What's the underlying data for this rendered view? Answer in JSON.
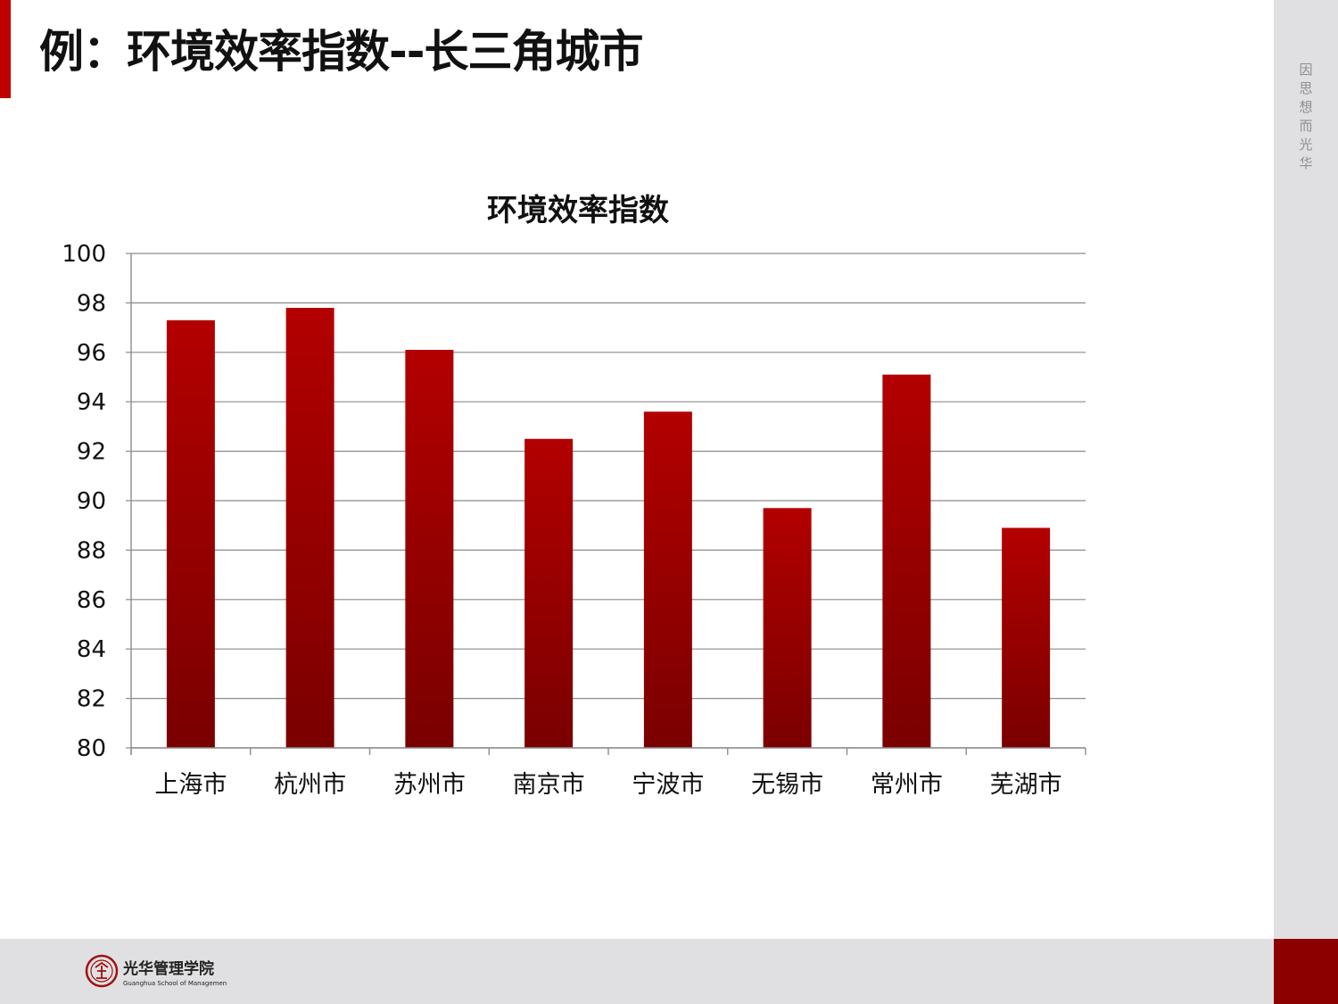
{
  "slide": {
    "title": "例：环境效率指数--长三角城市",
    "side_motto": "因思想 而光华",
    "logo": {
      "name_cn": "光华管理学院",
      "name_en": "Guanghua School of Management",
      "icon": "university-seal-icon"
    },
    "colors": {
      "accent": "#c00000",
      "bar_top": "#b30000",
      "bar_bottom": "#7a0000",
      "side_strip": "#e0e0e2",
      "footer_corner": "#8c0000"
    }
  },
  "chart_data": {
    "type": "bar",
    "title": "环境效率指数",
    "categories": [
      "上海市",
      "杭州市",
      "苏州市",
      "南京市",
      "宁波市",
      "无锡市",
      "常州市",
      "芜湖市"
    ],
    "values": [
      97.3,
      97.8,
      96.1,
      92.5,
      93.6,
      89.7,
      95.1,
      88.9
    ],
    "ylim": [
      80,
      100
    ],
    "yticks": [
      "80",
      "82",
      "84",
      "86",
      "88",
      "90",
      "92",
      "94",
      "96",
      "98",
      "100"
    ],
    "grid": true,
    "legend": "none",
    "xlabel": "",
    "ylabel": ""
  }
}
